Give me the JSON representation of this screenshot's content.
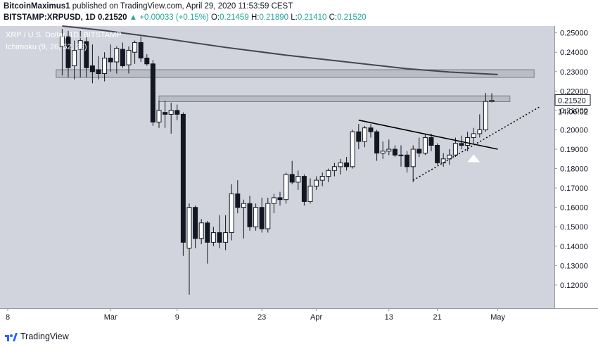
{
  "header": {
    "author": "BitcoinMaximus1",
    "published": "published on TradingView.com, April 29, 2020 11:53:59 CEST",
    "symbol": "BITSTAMP:XRPUSD, 1D",
    "price": "0.21520",
    "change": "▲ +0.00033 (+0.15%)",
    "o_label": "O:",
    "o_value": "0.21459",
    "h_label": "H:",
    "h_value": "0.21890",
    "l_label": "L:",
    "l_value": "0.21410",
    "c_label": "C:",
    "c_value": "0.21520"
  },
  "legend": {
    "title": "XRP / U.S. Dollar, 1D, BITSTAMP",
    "indicator": "Ichimoku (9, 26, 52, 26)"
  },
  "footer": {
    "brand": "TradingView"
  },
  "colors": {
    "plot_bg": "#d1d4dc",
    "candle_up": "#ffffff",
    "candle_down": "#131722",
    "wick": "#131722",
    "ma_line": "#434651",
    "zone_fill": "#b2b5be",
    "zone_border": "#787b86",
    "axis_text": "#131722",
    "arrow": "#ffffff"
  },
  "chart_data": {
    "type": "candlestick",
    "symbol": "XRPUSD",
    "interval": "1D",
    "ylim": [
      0.108,
      0.2535
    ],
    "y_ticks": [
      "0.25000",
      "0.24000",
      "0.23000",
      "0.22000",
      "0.21000",
      "0.20000",
      "0.19000",
      "0.18000",
      "0.17000",
      "0.16000",
      "0.15000",
      "0.14000",
      "0.13000",
      "0.12000"
    ],
    "x_ticks": [
      {
        "label": "8",
        "day": -1
      },
      {
        "label": "Mar",
        "day": 16
      },
      {
        "label": "9",
        "day": 27
      },
      {
        "label": "23",
        "day": 41
      },
      {
        "label": "Apr",
        "day": 50
      },
      {
        "label": "13",
        "day": 62
      },
      {
        "label": "21",
        "day": 70
      },
      {
        "label": "May",
        "day": 80
      }
    ],
    "price_label": "0.21520",
    "countdown_label": "14:06:02",
    "candles": [
      {
        "day": 8,
        "o": 0.243,
        "h": 0.252,
        "l": 0.228,
        "c": 0.248
      },
      {
        "day": 9,
        "o": 0.248,
        "h": 0.251,
        "l": 0.227,
        "c": 0.232
      },
      {
        "day": 10,
        "o": 0.233,
        "h": 0.246,
        "l": 0.226,
        "c": 0.241
      },
      {
        "day": 11,
        "o": 0.2415,
        "h": 0.251,
        "l": 0.227,
        "c": 0.246
      },
      {
        "day": 12,
        "o": 0.2455,
        "h": 0.248,
        "l": 0.227,
        "c": 0.232
      },
      {
        "day": 13,
        "o": 0.233,
        "h": 0.244,
        "l": 0.224,
        "c": 0.23
      },
      {
        "day": 14,
        "o": 0.231,
        "h": 0.238,
        "l": 0.226,
        "c": 0.229
      },
      {
        "day": 15,
        "o": 0.229,
        "h": 0.24,
        "l": 0.225,
        "c": 0.237
      },
      {
        "day": 16,
        "o": 0.237,
        "h": 0.244,
        "l": 0.23,
        "c": 0.235
      },
      {
        "day": 17,
        "o": 0.235,
        "h": 0.243,
        "l": 0.229,
        "c": 0.242
      },
      {
        "day": 18,
        "o": 0.2415,
        "h": 0.245,
        "l": 0.232,
        "c": 0.233
      },
      {
        "day": 19,
        "o": 0.2335,
        "h": 0.243,
        "l": 0.229,
        "c": 0.241
      },
      {
        "day": 20,
        "o": 0.24,
        "h": 0.246,
        "l": 0.234,
        "c": 0.245
      },
      {
        "day": 21,
        "o": 0.245,
        "h": 0.248,
        "l": 0.235,
        "c": 0.237
      },
      {
        "day": 22,
        "o": 0.237,
        "h": 0.239,
        "l": 0.233,
        "c": 0.234
      },
      {
        "day": 23,
        "o": 0.234,
        "h": 0.236,
        "l": 0.202,
        "c": 0.204
      },
      {
        "day": 24,
        "o": 0.204,
        "h": 0.215,
        "l": 0.201,
        "c": 0.21
      },
      {
        "day": 25,
        "o": 0.209,
        "h": 0.215,
        "l": 0.201,
        "c": 0.208
      },
      {
        "day": 26,
        "o": 0.208,
        "h": 0.214,
        "l": 0.198,
        "c": 0.21
      },
      {
        "day": 27,
        "o": 0.21,
        "h": 0.213,
        "l": 0.205,
        "c": 0.208
      },
      {
        "day": 28,
        "o": 0.208,
        "h": 0.209,
        "l": 0.135,
        "c": 0.142
      },
      {
        "day": 29,
        "o": 0.139,
        "h": 0.162,
        "l": 0.115,
        "c": 0.16
      },
      {
        "day": 30,
        "o": 0.16,
        "h": 0.161,
        "l": 0.139,
        "c": 0.144
      },
      {
        "day": 31,
        "o": 0.144,
        "h": 0.154,
        "l": 0.141,
        "c": 0.152
      },
      {
        "day": 32,
        "o": 0.152,
        "h": 0.153,
        "l": 0.131,
        "c": 0.142
      },
      {
        "day": 33,
        "o": 0.142,
        "h": 0.15,
        "l": 0.14,
        "c": 0.147
      },
      {
        "day": 34,
        "o": 0.147,
        "h": 0.156,
        "l": 0.139,
        "c": 0.142
      },
      {
        "day": 35,
        "o": 0.142,
        "h": 0.156,
        "l": 0.138,
        "c": 0.147
      },
      {
        "day": 36,
        "o": 0.147,
        "h": 0.172,
        "l": 0.143,
        "c": 0.167
      },
      {
        "day": 37,
        "o": 0.167,
        "h": 0.174,
        "l": 0.157,
        "c": 0.16
      },
      {
        "day": 38,
        "o": 0.16,
        "h": 0.164,
        "l": 0.144,
        "c": 0.162
      },
      {
        "day": 39,
        "o": 0.162,
        "h": 0.166,
        "l": 0.148,
        "c": 0.15
      },
      {
        "day": 40,
        "o": 0.15,
        "h": 0.162,
        "l": 0.148,
        "c": 0.16
      },
      {
        "day": 41,
        "o": 0.16,
        "h": 0.165,
        "l": 0.147,
        "c": 0.149
      },
      {
        "day": 42,
        "o": 0.149,
        "h": 0.165,
        "l": 0.147,
        "c": 0.162
      },
      {
        "day": 43,
        "o": 0.162,
        "h": 0.167,
        "l": 0.157,
        "c": 0.165
      },
      {
        "day": 44,
        "o": 0.165,
        "h": 0.168,
        "l": 0.161,
        "c": 0.164
      },
      {
        "day": 45,
        "o": 0.164,
        "h": 0.178,
        "l": 0.162,
        "c": 0.177
      },
      {
        "day": 46,
        "o": 0.177,
        "h": 0.184,
        "l": 0.172,
        "c": 0.173
      },
      {
        "day": 47,
        "o": 0.173,
        "h": 0.179,
        "l": 0.169,
        "c": 0.176
      },
      {
        "day": 48,
        "o": 0.176,
        "h": 0.177,
        "l": 0.161,
        "c": 0.163
      },
      {
        "day": 49,
        "o": 0.163,
        "h": 0.175,
        "l": 0.162,
        "c": 0.171
      },
      {
        "day": 50,
        "o": 0.171,
        "h": 0.176,
        "l": 0.169,
        "c": 0.174
      },
      {
        "day": 51,
        "o": 0.174,
        "h": 0.178,
        "l": 0.171,
        "c": 0.176
      },
      {
        "day": 52,
        "o": 0.176,
        "h": 0.18,
        "l": 0.173,
        "c": 0.179
      },
      {
        "day": 53,
        "o": 0.179,
        "h": 0.183,
        "l": 0.176,
        "c": 0.181
      },
      {
        "day": 54,
        "o": 0.181,
        "h": 0.185,
        "l": 0.177,
        "c": 0.183
      },
      {
        "day": 55,
        "o": 0.183,
        "h": 0.186,
        "l": 0.179,
        "c": 0.181
      },
      {
        "day": 56,
        "o": 0.181,
        "h": 0.2,
        "l": 0.18,
        "c": 0.199
      },
      {
        "day": 57,
        "o": 0.199,
        "h": 0.203,
        "l": 0.19,
        "c": 0.194
      },
      {
        "day": 58,
        "o": 0.194,
        "h": 0.202,
        "l": 0.191,
        "c": 0.201
      },
      {
        "day": 59,
        "o": 0.201,
        "h": 0.203,
        "l": 0.196,
        "c": 0.199
      },
      {
        "day": 60,
        "o": 0.199,
        "h": 0.2,
        "l": 0.184,
        "c": 0.188
      },
      {
        "day": 61,
        "o": 0.188,
        "h": 0.194,
        "l": 0.185,
        "c": 0.189
      },
      {
        "day": 62,
        "o": 0.189,
        "h": 0.195,
        "l": 0.187,
        "c": 0.19
      },
      {
        "day": 63,
        "o": 0.19,
        "h": 0.192,
        "l": 0.186,
        "c": 0.187
      },
      {
        "day": 64,
        "o": 0.187,
        "h": 0.192,
        "l": 0.181,
        "c": 0.187
      },
      {
        "day": 65,
        "o": 0.187,
        "h": 0.189,
        "l": 0.178,
        "c": 0.181
      },
      {
        "day": 66,
        "o": 0.181,
        "h": 0.192,
        "l": 0.173,
        "c": 0.19
      },
      {
        "day": 67,
        "o": 0.19,
        "h": 0.196,
        "l": 0.186,
        "c": 0.188
      },
      {
        "day": 68,
        "o": 0.188,
        "h": 0.198,
        "l": 0.187,
        "c": 0.196
      },
      {
        "day": 69,
        "o": 0.196,
        "h": 0.198,
        "l": 0.189,
        "c": 0.192
      },
      {
        "day": 70,
        "o": 0.192,
        "h": 0.193,
        "l": 0.182,
        "c": 0.183
      },
      {
        "day": 71,
        "o": 0.183,
        "h": 0.188,
        "l": 0.181,
        "c": 0.185
      },
      {
        "day": 72,
        "o": 0.185,
        "h": 0.19,
        "l": 0.182,
        "c": 0.187
      },
      {
        "day": 73,
        "o": 0.187,
        "h": 0.196,
        "l": 0.186,
        "c": 0.193
      },
      {
        "day": 74,
        "o": 0.193,
        "h": 0.197,
        "l": 0.19,
        "c": 0.192
      },
      {
        "day": 75,
        "o": 0.192,
        "h": 0.199,
        "l": 0.189,
        "c": 0.196
      },
      {
        "day": 76,
        "o": 0.196,
        "h": 0.201,
        "l": 0.193,
        "c": 0.198
      },
      {
        "day": 77,
        "o": 0.198,
        "h": 0.208,
        "l": 0.196,
        "c": 0.2
      },
      {
        "day": 78,
        "o": 0.2,
        "h": 0.219,
        "l": 0.199,
        "c": 0.2146
      },
      {
        "day": 79,
        "o": 0.2146,
        "h": 0.2189,
        "l": 0.2141,
        "c": 0.2152
      }
    ],
    "moving_average": [
      {
        "day": 8,
        "y": 0.2535
      },
      {
        "day": 15,
        "y": 0.2512
      },
      {
        "day": 25,
        "y": 0.247
      },
      {
        "day": 35,
        "y": 0.2425
      },
      {
        "day": 45,
        "y": 0.2385
      },
      {
        "day": 55,
        "y": 0.235
      },
      {
        "day": 65,
        "y": 0.2315
      },
      {
        "day": 72,
        "y": 0.2298
      },
      {
        "day": 80,
        "y": 0.2285
      }
    ],
    "resistance_zones": [
      {
        "day_from": 7,
        "day_to": 86,
        "y_low": 0.227,
        "y_high": 0.231
      },
      {
        "day_from": 24,
        "day_to": 82,
        "y_low": 0.2145,
        "y_high": 0.2175
      }
    ],
    "trendlines": [
      {
        "style": "solid",
        "from": {
          "day": 57,
          "y": 0.205
        },
        "to": {
          "day": 80,
          "y": 0.19
        }
      },
      {
        "style": "dotted",
        "from": {
          "day": 66,
          "y": 0.174
        },
        "to": {
          "day": 87,
          "y": 0.212
        }
      }
    ],
    "markers": [
      {
        "type": "arrow-up",
        "day": 76,
        "y": 0.1855
      }
    ]
  }
}
